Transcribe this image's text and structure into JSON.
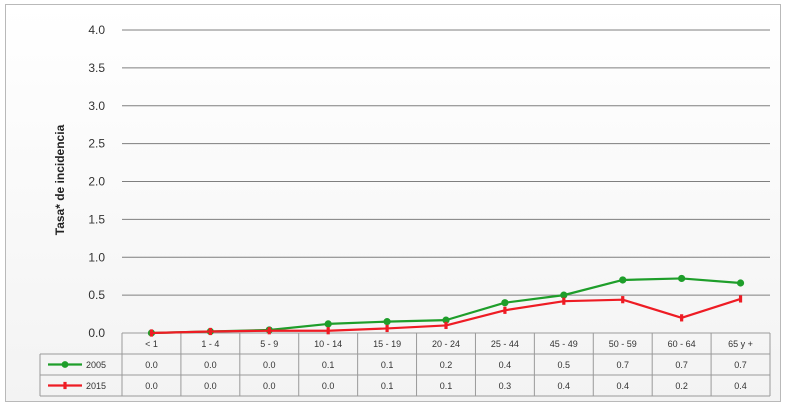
{
  "chart_data": {
    "type": "line",
    "ylabel": "Tasa* de incidencia",
    "categories": [
      "< 1",
      "1 - 4",
      "5 - 9",
      "10 - 14",
      "15 - 19",
      "20 - 24",
      "25 - 44",
      "45 - 49",
      "50 - 59",
      "60 - 64",
      "65 y +"
    ],
    "ylim": [
      0,
      4.0
    ],
    "yticks": [
      "4.0",
      "3.5",
      "3.0",
      "2.5",
      "2.0",
      "1.5",
      "1.0",
      "0.5",
      "0.0"
    ],
    "grid": true,
    "legend": "data-table",
    "series": [
      {
        "name": "2005",
        "color": "#1e9e2a",
        "values": [
          0.0,
          0.02,
          0.04,
          0.12,
          0.15,
          0.17,
          0.4,
          0.5,
          0.7,
          0.72,
          0.66
        ],
        "labels": [
          "0.0",
          "0.0",
          "0.0",
          "0.1",
          "0.1",
          "0.2",
          "0.4",
          "0.5",
          "0.7",
          "0.7",
          "0.7"
        ]
      },
      {
        "name": "2015",
        "color": "#ee1c24",
        "values": [
          0.0,
          0.02,
          0.03,
          0.03,
          0.06,
          0.1,
          0.3,
          0.42,
          0.44,
          0.2,
          0.45
        ],
        "labels": [
          "0.0",
          "0.0",
          "0.0",
          "0.0",
          "0.1",
          "0.1",
          "0.3",
          "0.4",
          "0.4",
          "0.2",
          "0.4"
        ]
      }
    ]
  }
}
